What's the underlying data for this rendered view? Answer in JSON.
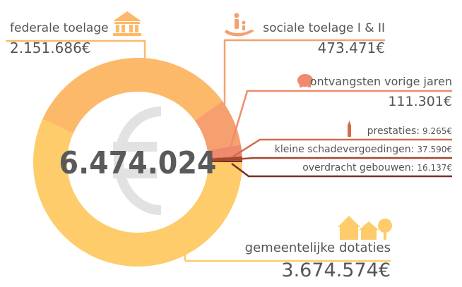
{
  "chart_data": {
    "type": "pie",
    "donut": true,
    "annotations": [
      "6.474.024"
    ],
    "categories": [
      "overdracht gebouwen:",
      "kleine schadevergoedingen:",
      "prestaties:",
      "ontvangsten vorige jaren",
      "sociale toelage I & II",
      "federale toelage",
      "gemeentelijke dotaties"
    ],
    "values": [
      16137,
      37590,
      9265,
      111301,
      473471,
      2151686,
      3674574
    ],
    "value_labels": [
      "16.137€",
      "37.590€",
      "9.265€",
      "111.301€",
      "473.471€",
      "2.151.686€",
      "3.674.574€"
    ],
    "colors": [
      "#7a2e22",
      "#a5472e",
      "#d46a4a",
      "#f08a6e",
      "#f6a070",
      "#fcb96a",
      "#fecc6a"
    ]
  }
}
